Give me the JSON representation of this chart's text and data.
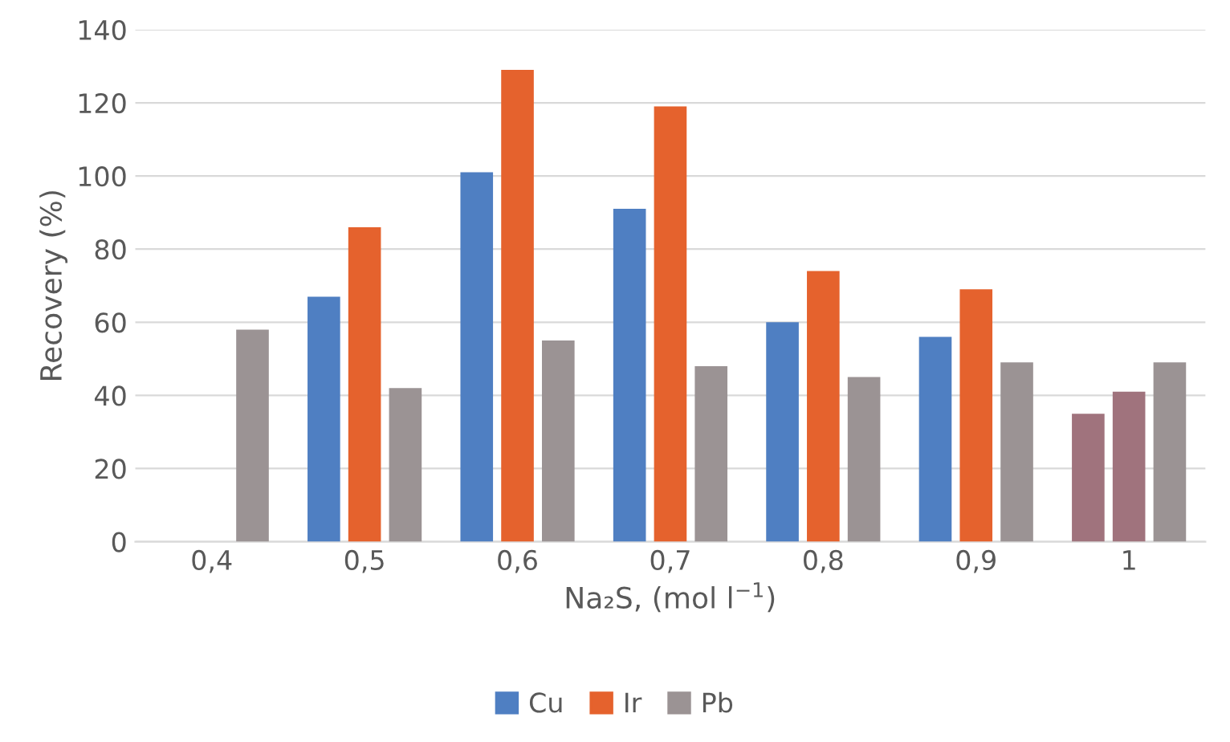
{
  "chart_data": {
    "type": "bar",
    "categories": [
      "0,4",
      "0,5",
      "0,6",
      "0,7",
      "0,8",
      "0,9",
      "1"
    ],
    "series": [
      {
        "name": "Cu",
        "color": "#4f7fc2",
        "colors": [
          "#4f7fc2",
          "#4f7fc2",
          "#4f7fc2",
          "#4f7fc2",
          "#4f7fc2",
          "#4f7fc2",
          "#a0737d"
        ],
        "values": [
          null,
          67,
          101,
          91,
          60,
          56,
          35
        ]
      },
      {
        "name": "Ir",
        "color": "#e5622d",
        "colors": [
          "#e5622d",
          "#e5622d",
          "#e5622d",
          "#e5622d",
          "#e5622d",
          "#e5622d",
          "#a0737d"
        ],
        "values": [
          null,
          86,
          129,
          119,
          74,
          69,
          41
        ]
      },
      {
        "name": "Pb",
        "color": "#9b9394",
        "values": [
          58,
          42,
          55,
          48,
          45,
          49,
          49
        ]
      }
    ],
    "xlabel": "Na₂S, (mol l$^{−1}$)",
    "ylabel": "Recovery (%)",
    "ylim": [
      0,
      140
    ],
    "yticks": [
      0,
      20,
      40,
      60,
      80,
      100,
      120,
      140
    ],
    "grid": "y",
    "legend": "bottom"
  }
}
